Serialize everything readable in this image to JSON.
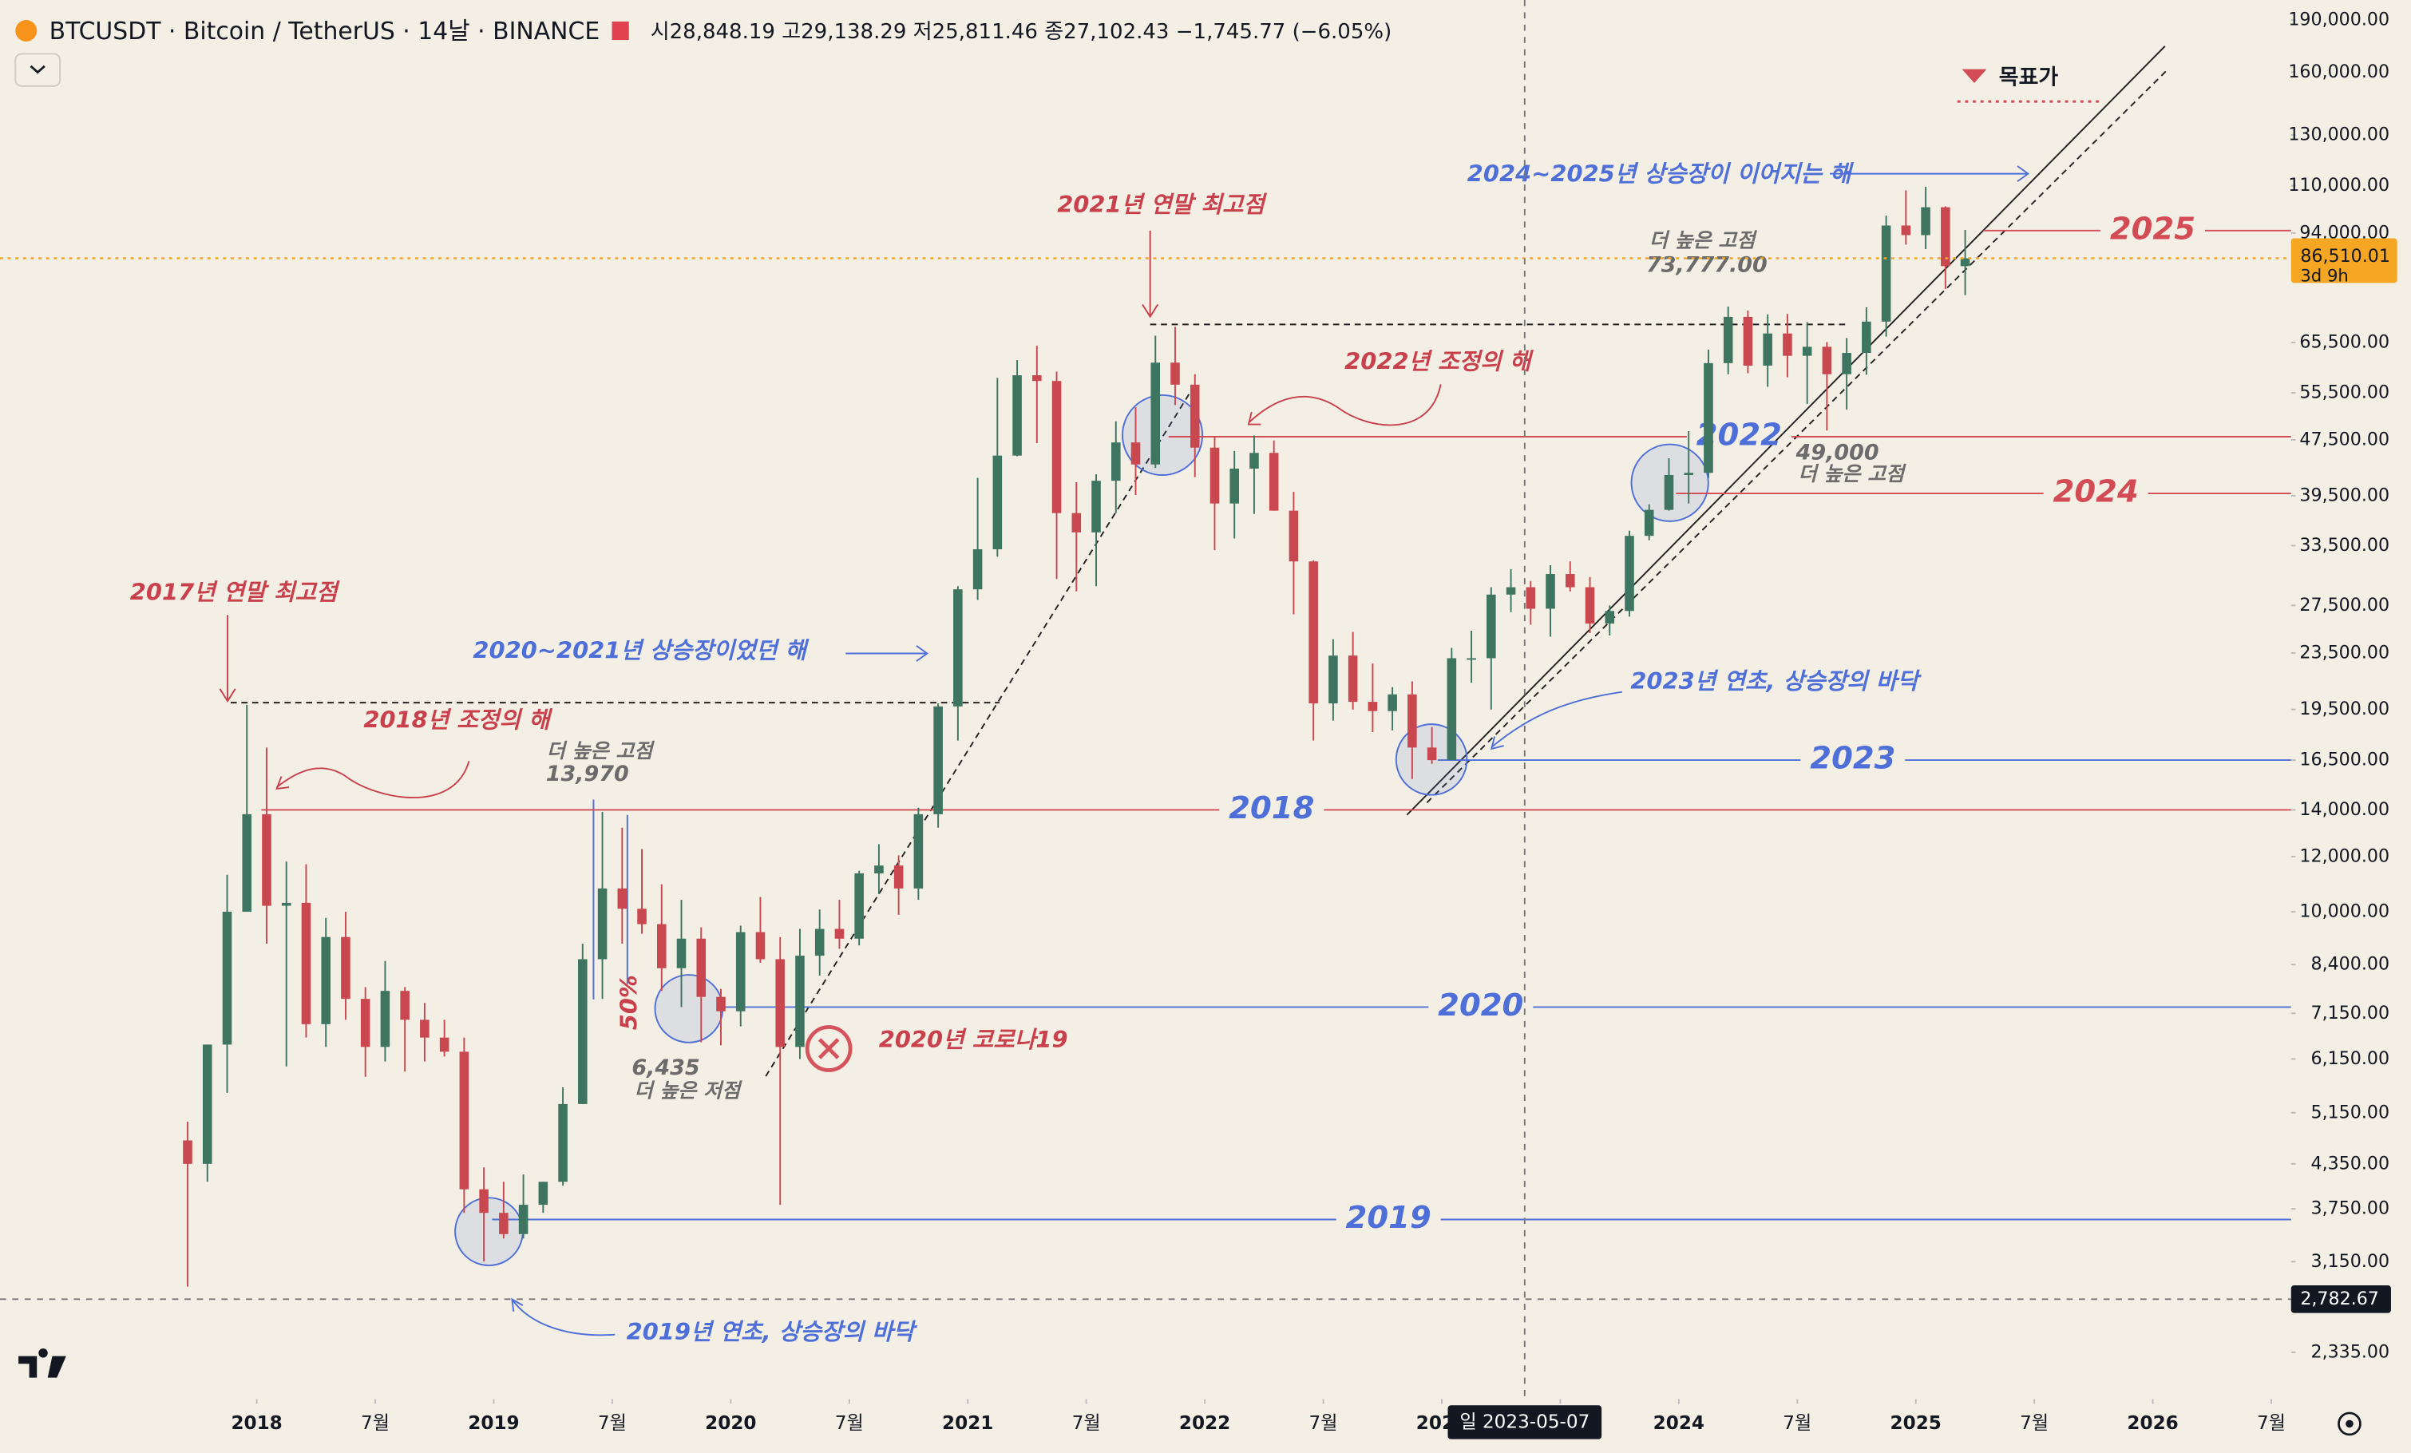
{
  "header": {
    "symbol": "BTCUSDT · Bitcoin / TetherUS · 14날 · BINANCE",
    "ohlc": "시28,848.19 고29,138.29 저25,811.46 종27,102.43 −1,745.77 (−6.05%)",
    "target": "목표가"
  },
  "chart_data": {
    "type": "candlestick",
    "log_scale": true,
    "up_color": "#3e7560",
    "down_color": "#c9474f",
    "x": [
      "2017-09",
      "2017-10",
      "2017-11",
      "2017-12",
      "2018-01",
      "2018-02",
      "2018-03",
      "2018-04",
      "2018-05",
      "2018-06",
      "2018-07",
      "2018-08",
      "2018-09",
      "2018-10",
      "2018-11",
      "2018-12",
      "2019-01",
      "2019-02",
      "2019-03",
      "2019-04",
      "2019-05",
      "2019-06",
      "2019-07",
      "2019-08",
      "2019-09",
      "2019-10",
      "2019-11",
      "2019-12",
      "2020-01",
      "2020-02",
      "2020-03",
      "2020-04",
      "2020-05",
      "2020-06",
      "2020-07",
      "2020-08",
      "2020-09",
      "2020-10",
      "2020-11",
      "2020-12",
      "2021-01",
      "2021-02",
      "2021-03",
      "2021-04",
      "2021-05",
      "2021-06",
      "2021-07",
      "2021-08",
      "2021-09",
      "2021-10",
      "2021-11",
      "2021-12",
      "2022-01",
      "2022-02",
      "2022-03",
      "2022-04",
      "2022-05",
      "2022-06",
      "2022-07",
      "2022-08",
      "2022-09",
      "2022-10",
      "2022-11",
      "2022-12",
      "2023-01",
      "2023-02",
      "2023-03",
      "2023-04",
      "2023-05",
      "2023-06",
      "2023-07",
      "2023-08",
      "2023-09",
      "2023-10",
      "2023-11",
      "2023-12",
      "2024-01",
      "2024-02",
      "2024-03",
      "2024-04",
      "2024-05",
      "2024-06",
      "2024-07",
      "2024-08",
      "2024-09",
      "2024-10",
      "2024-11",
      "2024-12",
      "2025-01",
      "2025-02",
      "2025-03"
    ],
    "open": [
      4700,
      4350,
      6450,
      10000,
      13800,
      10200,
      10300,
      6900,
      9200,
      7500,
      6400,
      7700,
      7000,
      6600,
      6300,
      4000,
      3700,
      3450,
      3800,
      4100,
      5300,
      8550,
      10800,
      10100,
      9600,
      8300,
      9150,
      7550,
      7200,
      9350,
      8550,
      6400,
      8650,
      9450,
      9150,
      11350,
      11650,
      10800,
      13800,
      19700,
      29000,
      33100,
      45100,
      58800,
      57700,
      37300,
      35000,
      41500,
      47100,
      43800,
      61300,
      57000,
      46300,
      38500,
      43200,
      45500,
      37600,
      31800,
      19900,
      23300,
      20000,
      19400,
      20500,
      17200,
      16500,
      23100,
      23100,
      28500,
      29200,
      27200,
      30500,
      29200,
      25900,
      27000,
      34600,
      37700,
      42300,
      42600,
      61200,
      71300,
      60700,
      67500,
      62700,
      64600,
      59000,
      63300,
      70200,
      96400,
      93400,
      102400,
      84300
    ],
    "high": [
      5000,
      6450,
      11300,
      19800,
      17200,
      11800,
      11700,
      9800,
      10000,
      7800,
      8500,
      7800,
      7400,
      7000,
      6600,
      4300,
      4100,
      4200,
      4100,
      5600,
      9000,
      13900,
      13200,
      12300,
      10950,
      10400,
      9500,
      7750,
      9550,
      10500,
      9200,
      9450,
      10070,
      10400,
      11450,
      12500,
      12050,
      14100,
      19900,
      29300,
      41900,
      58300,
      61800,
      64800,
      59500,
      41300,
      42400,
      50500,
      52900,
      67000,
      69000,
      59000,
      48000,
      45800,
      48200,
      47400,
      40000,
      31900,
      24600,
      25200,
      22700,
      21000,
      21400,
      18400,
      23900,
      25300,
      29200,
      31000,
      29800,
      31400,
      31800,
      30200,
      27500,
      35200,
      38400,
      44700,
      48900,
      64000,
      73777,
      72800,
      71900,
      72000,
      70100,
      65600,
      66500,
      73600,
      99600,
      108300,
      109600,
      102700,
      95000
    ],
    "low": [
      2900,
      4100,
      5500,
      12000,
      9000,
      6000,
      6600,
      6400,
      7000,
      5800,
      6100,
      5900,
      6100,
      6200,
      3700,
      3150,
      3400,
      3400,
      3700,
      4050,
      5300,
      7500,
      9000,
      9300,
      7700,
      7300,
      6500,
      6435,
      6850,
      8450,
      3800,
      6150,
      8100,
      8850,
      8950,
      10600,
      9900,
      10400,
      13200,
      17600,
      28000,
      32300,
      45000,
      47000,
      30000,
      28800,
      29300,
      37300,
      39600,
      43300,
      53300,
      42000,
      33000,
      34300,
      37200,
      37600,
      26700,
      17600,
      18800,
      19500,
      18100,
      18200,
      15500,
      16300,
      16500,
      21300,
      19500,
      26900,
      25800,
      24800,
      28800,
      25100,
      24900,
      26500,
      34100,
      37600,
      38500,
      41900,
      59000,
      59200,
      56600,
      58400,
      53500,
      49000,
      52500,
      58900,
      66800,
      90500,
      89200,
      78200,
      76600
    ],
    "close": [
      4350,
      6450,
      10000,
      13800,
      10200,
      10300,
      6900,
      9200,
      7500,
      6400,
      7700,
      7000,
      6600,
      6300,
      4000,
      3700,
      3450,
      3800,
      4100,
      5300,
      8550,
      10800,
      10100,
      9600,
      8300,
      9150,
      7550,
      7200,
      9350,
      8550,
      6400,
      8650,
      9450,
      9150,
      11350,
      11650,
      10800,
      13800,
      19700,
      29000,
      33100,
      45100,
      58800,
      57700,
      37300,
      35000,
      41500,
      47100,
      43800,
      61300,
      57000,
      46300,
      38500,
      43200,
      45500,
      37600,
      31800,
      19900,
      23300,
      20000,
      19400,
      20500,
      17200,
      16500,
      23100,
      23100,
      28500,
      29200,
      27200,
      30500,
      29200,
      25900,
      27000,
      34600,
      37700,
      42300,
      42600,
      61200,
      71300,
      60700,
      67500,
      62700,
      64600,
      59000,
      63300,
      70200,
      96400,
      93400,
      102400,
      84300,
      86510.01
    ],
    "xlim": [
      "2016-12",
      "2026-08"
    ],
    "xticks": [
      {
        "value": "2018-01",
        "label": "2018"
      },
      {
        "value": "2018-07",
        "label": "7월"
      },
      {
        "value": "2019-01",
        "label": "2019"
      },
      {
        "value": "2019-07",
        "label": "7월"
      },
      {
        "value": "2020-01",
        "label": "2020"
      },
      {
        "value": "2020-07",
        "label": "7월"
      },
      {
        "value": "2021-01",
        "label": "2021"
      },
      {
        "value": "2021-07",
        "label": "7월"
      },
      {
        "value": "2022-01",
        "label": "2022"
      },
      {
        "value": "2022-07",
        "label": "7월"
      },
      {
        "value": "2023-01",
        "label": "2023"
      },
      {
        "value": "2023-07",
        "label": "7월"
      },
      {
        "value": "2024-01",
        "label": "2024"
      },
      {
        "value": "2024-07",
        "label": "7월"
      },
      {
        "value": "2025-01",
        "label": "2025"
      },
      {
        "value": "2025-07",
        "label": "7월"
      },
      {
        "value": "2026-01",
        "label": "2026"
      },
      {
        "value": "2026-07",
        "label": "7월"
      }
    ],
    "ylim": [
      2000,
      203000
    ],
    "yticks": [
      {
        "value": 190000,
        "label": "190,000.00"
      },
      {
        "value": 160000,
        "label": "160,000.00"
      },
      {
        "value": 130000,
        "label": "130,000.00"
      },
      {
        "value": 110000,
        "label": "110,000.00"
      },
      {
        "value": 94000,
        "label": "94,000.00"
      },
      {
        "value": 65500,
        "label": "65,500.00"
      },
      {
        "value": 55500,
        "label": "55,500.00"
      },
      {
        "value": 47500,
        "label": "47,500.00"
      },
      {
        "value": 39500,
        "label": "39,500.00"
      },
      {
        "value": 33500,
        "label": "33,500.00"
      },
      {
        "value": 27500,
        "label": "27,500.00"
      },
      {
        "value": 23500,
        "label": "23,500.00"
      },
      {
        "value": 19500,
        "label": "19,500.00"
      },
      {
        "value": 16500,
        "label": "16,500.00"
      },
      {
        "value": 14000,
        "label": "14,000.00"
      },
      {
        "value": 12000,
        "label": "12,000.00"
      },
      {
        "value": 10000,
        "label": "10,000.00"
      },
      {
        "value": 8400,
        "label": "8,400.00"
      },
      {
        "value": 7150,
        "label": "7,150.00"
      },
      {
        "value": 6150,
        "label": "6,150.00"
      },
      {
        "value": 5150,
        "label": "5,150.00"
      },
      {
        "value": 4350,
        "label": "4,350.00"
      },
      {
        "value": 3750,
        "label": "3,750.00"
      },
      {
        "value": 3150,
        "label": "3,150.00"
      },
      {
        "value": 2335,
        "label": "2,335.00"
      }
    ],
    "last_price": {
      "value": 86510.01,
      "label": "86,510.01",
      "countdown": "3d 9h",
      "color": "#f5a623"
    },
    "crosshair": {
      "day": "일",
      "date": "2023-05-07",
      "price": {
        "value": 2782.67,
        "label": "2,782.67"
      }
    },
    "levels": [
      {
        "label": "2018",
        "value": 14000,
        "color": "#d24b55",
        "label_color": "#4f6fd8"
      },
      {
        "label": "2020",
        "value": 7300,
        "color": "#4f6fd8",
        "label_color": "#4f6fd8"
      },
      {
        "label": "2019",
        "value": 3620,
        "color": "#4f6fd8",
        "label_color": "#4f6fd8"
      },
      {
        "label": "2023",
        "value": 16500,
        "color": "#4f6fd8",
        "label_color": "#4f6fd8"
      },
      {
        "label": "2022",
        "value": 48000,
        "color": "#d24b55",
        "label_color": "#4f6fd8"
      },
      {
        "label": "2024",
        "value": 39800,
        "color": "#d24b55",
        "label_color": "#d24b55"
      },
      {
        "label": "2025",
        "value": 94800,
        "color": "#d24b55",
        "label_color": "#d24b55"
      }
    ],
    "annotations": [
      "2017년 연말 최고점",
      "2018년 조정의 해",
      "더 높은 고점",
      "13,970",
      "2020~2021년 상승장이었던 해",
      "50%",
      "6,435",
      "더 높은 저점",
      "2020년 코로나19",
      "2021년 연말 최고점",
      "2022년 조정의 해",
      "더 높은 고점",
      "73,777.00",
      "2024~2025년 상승장이 이어지는 해",
      "49,000",
      "더 높은 고점",
      "2023년 연초, 상승장의 바닥",
      "2019년 연초, 상승장의 바닥"
    ]
  }
}
